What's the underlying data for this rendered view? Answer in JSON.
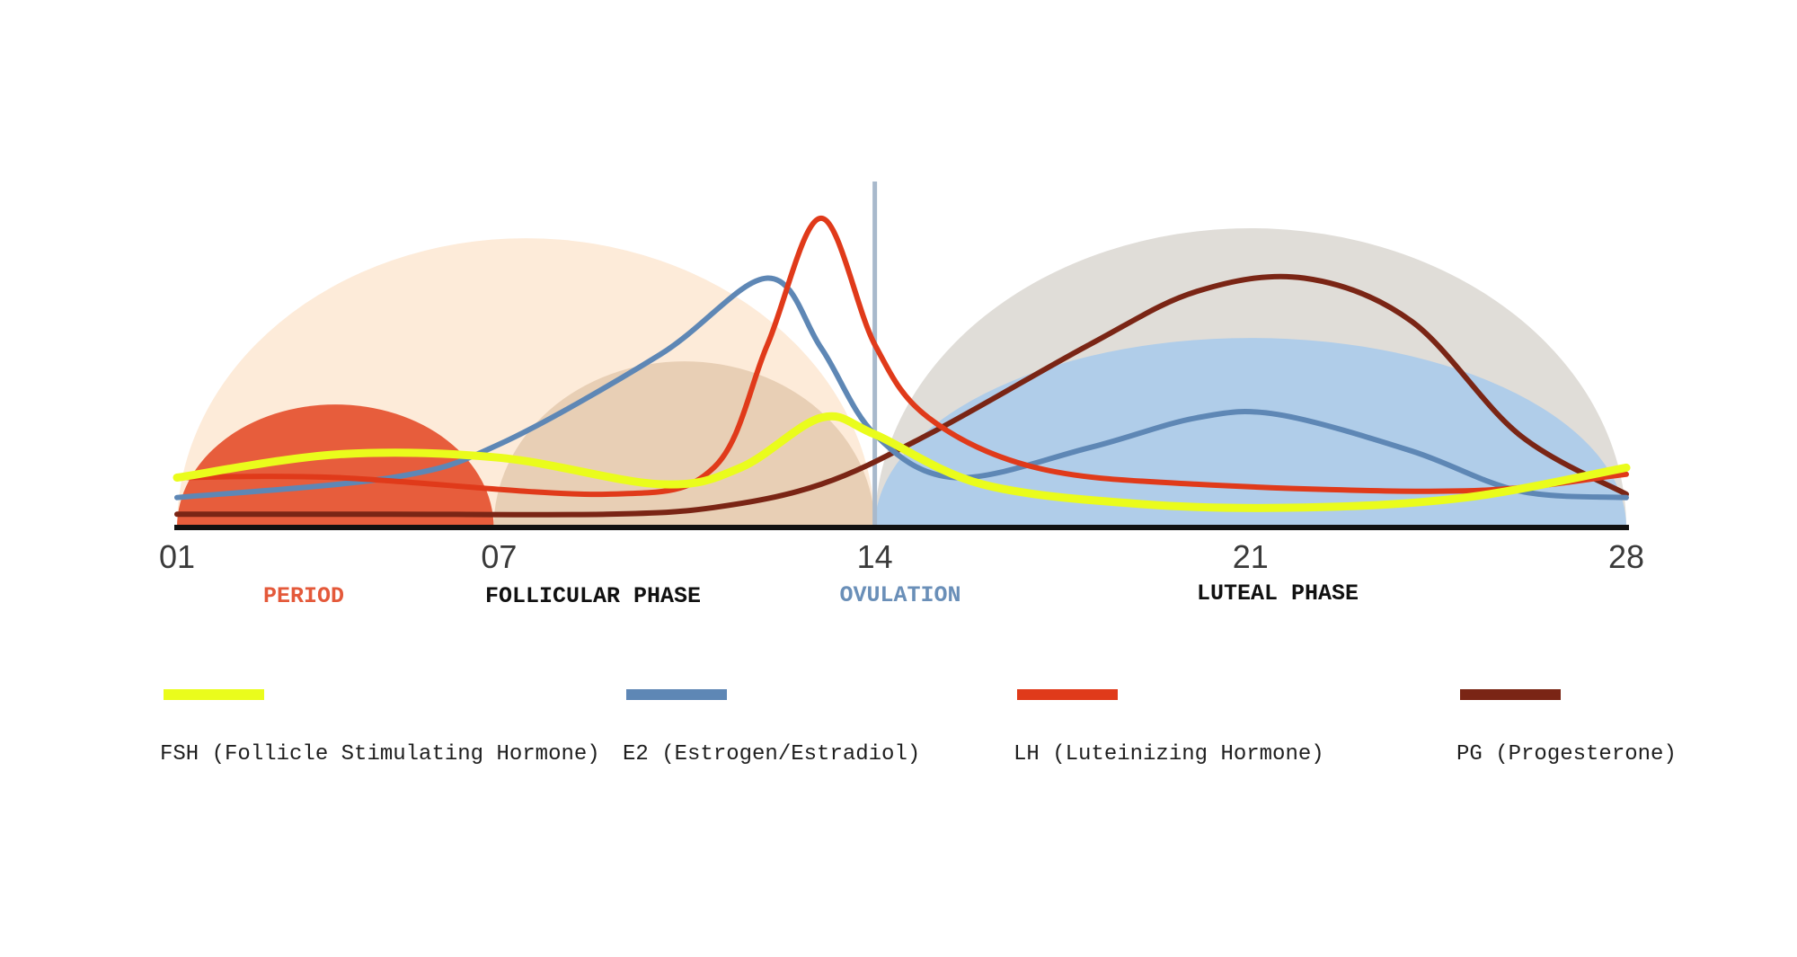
{
  "chart_data": {
    "type": "line",
    "x_ticks": [
      "01",
      "07",
      "14",
      "21",
      "28"
    ],
    "xlim": [
      1,
      28
    ],
    "phases": [
      {
        "key": "period",
        "label": "PERIOD",
        "color": "#e4593a"
      },
      {
        "key": "follicular",
        "label": "FOLLICULAR PHASE",
        "color": "#111111"
      },
      {
        "key": "ovulation",
        "label": "OVULATION",
        "color": "#6a8fb8"
      },
      {
        "key": "luteal",
        "label": "LUTEAL PHASE",
        "color": "#111111"
      }
    ],
    "phase_shapes": [
      {
        "name": "follicular-phase-arc",
        "from": 1,
        "to": 14,
        "height": 0.87,
        "color": "#fdebd9"
      },
      {
        "name": "luteal-phase-arc",
        "from": 14,
        "to": 28,
        "height": 0.9,
        "color": "#e0ddd8"
      },
      {
        "name": "period-arc",
        "from": 1,
        "to": 6.9,
        "height": 0.37,
        "color": "#e75d3c"
      },
      {
        "name": "follicle-arc",
        "from": 6.9,
        "to": 14,
        "height": 0.5,
        "color": "#e8cfb5"
      },
      {
        "name": "corpus-luteum-arc",
        "from": 14,
        "to": 28,
        "height": 0.57,
        "color": "#b0cde9"
      }
    ],
    "ovulation_line": {
      "x": 14,
      "color": "#a8b9cc"
    },
    "series": [
      {
        "key": "pg",
        "color": "#7a2515",
        "x": [
          1,
          5,
          9,
          11,
          13,
          15,
          18,
          20,
          22,
          24,
          26,
          28
        ],
        "y": [
          0.04,
          0.04,
          0.04,
          0.06,
          0.13,
          0.28,
          0.55,
          0.71,
          0.75,
          0.62,
          0.28,
          0.1
        ]
      },
      {
        "key": "e2",
        "color": "#5e87b5",
        "x": [
          1,
          5,
          7,
          10,
          12,
          13,
          14,
          15.5,
          18,
          20,
          21.5,
          24,
          26,
          28
        ],
        "y": [
          0.09,
          0.15,
          0.25,
          0.52,
          0.75,
          0.54,
          0.28,
          0.15,
          0.24,
          0.33,
          0.34,
          0.23,
          0.11,
          0.09
        ]
      },
      {
        "key": "lh",
        "color": "#e03a1a",
        "x": [
          1,
          4,
          9,
          11,
          12,
          13,
          14,
          15,
          17,
          20,
          25,
          28
        ],
        "y": [
          0.15,
          0.15,
          0.1,
          0.18,
          0.55,
          0.93,
          0.55,
          0.33,
          0.18,
          0.13,
          0.11,
          0.16
        ]
      },
      {
        "key": "fsh",
        "color": "#eafc1c",
        "x": [
          1,
          4,
          7,
          10,
          11.5,
          13,
          14,
          16,
          19,
          22,
          25,
          28
        ],
        "y": [
          0.15,
          0.22,
          0.21,
          0.13,
          0.18,
          0.33,
          0.28,
          0.13,
          0.07,
          0.06,
          0.09,
          0.18
        ]
      }
    ],
    "legend": [
      {
        "key": "fsh",
        "label": "FSH (Follicle Stimulating Hormone)",
        "color": "#eafc1c"
      },
      {
        "key": "e2",
        "label": "E2 (Estrogen/Estradiol)",
        "color": "#5e87b5"
      },
      {
        "key": "lh",
        "label": "LH (Luteinizing Hormone)",
        "color": "#e03a1a"
      },
      {
        "key": "pg",
        "label": "PG (Progesterone)",
        "color": "#7a2515"
      }
    ]
  }
}
